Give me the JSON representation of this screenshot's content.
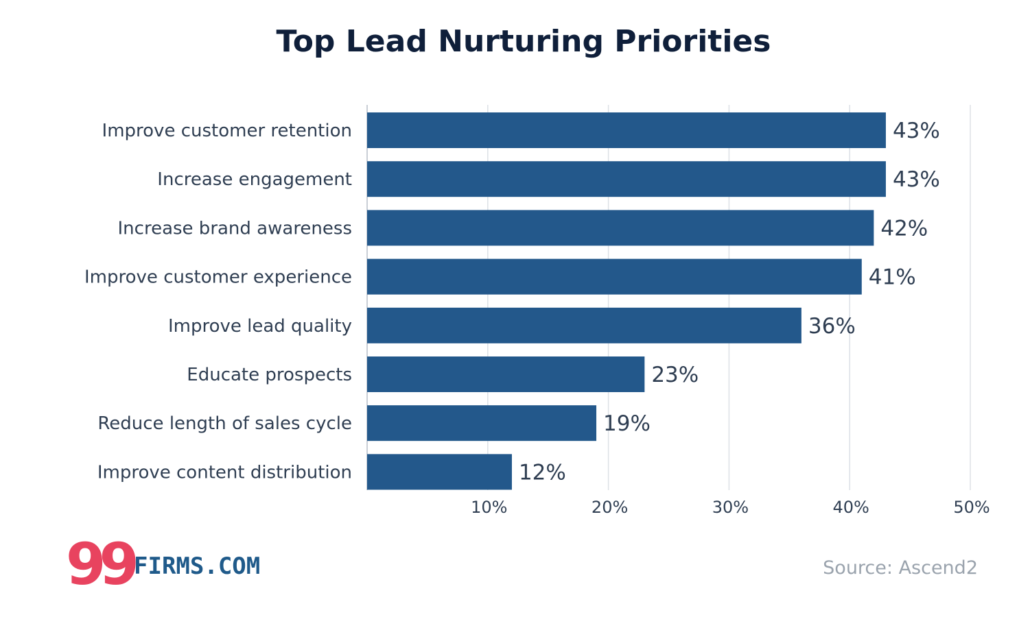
{
  "chart_data": {
    "type": "bar",
    "orientation": "horizontal",
    "title": "Top Lead Nurturing Priorities",
    "categories": [
      "Improve customer retention",
      "Increase engagement",
      "Increase brand awareness",
      "Improve customer experience",
      "Improve lead quality",
      "Educate prospects",
      "Reduce length of sales cycle",
      "Improve content distribution"
    ],
    "values": [
      43,
      43,
      42,
      41,
      36,
      23,
      19,
      12
    ],
    "value_labels": [
      "43%",
      "43%",
      "42%",
      "41%",
      "36%",
      "23%",
      "19%",
      "12%"
    ],
    "xlim": [
      0,
      50
    ],
    "ticks": [
      10,
      20,
      30,
      40,
      50
    ],
    "tick_labels": [
      "10%",
      "20%",
      "30%",
      "40%",
      "50%"
    ],
    "grid": true,
    "bar_color": "#23588b"
  },
  "source": "Source: Ascend2",
  "logo": {
    "number": "99",
    "text": "FIRMS.COM",
    "number_color": "#e8435f",
    "text_color": "#1f5a8a"
  }
}
